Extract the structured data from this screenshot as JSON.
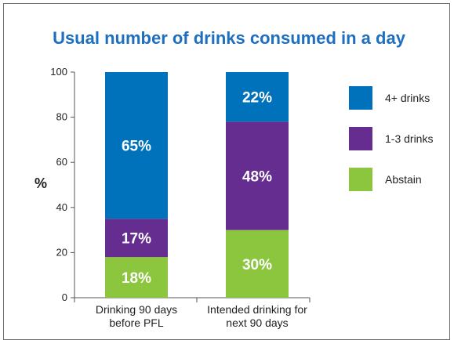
{
  "chart_data": {
    "type": "bar",
    "stacked": true,
    "title": "Usual number of drinks consumed in a day",
    "ylabel": "%",
    "ylim": [
      0,
      100
    ],
    "yticks": [
      0,
      20,
      40,
      60,
      80,
      100
    ],
    "categories": [
      [
        "Drinking 90 days",
        "before PFL"
      ],
      [
        "Intended drinking for",
        "next 90 days"
      ]
    ],
    "series": [
      {
        "name": "Abstain",
        "color": "#8cc63f",
        "values": [
          18,
          30
        ],
        "labels": [
          "18%",
          "30%"
        ]
      },
      {
        "name": "1-3 drinks",
        "color": "#662d91",
        "values": [
          17,
          48
        ],
        "labels": [
          "17%",
          "48%"
        ]
      },
      {
        "name": "4+ drinks",
        "color": "#0072bc",
        "values": [
          65,
          22
        ],
        "labels": [
          "65%",
          "22%"
        ]
      }
    ],
    "legend_order": [
      "4+ drinks",
      "1-3 drinks",
      "Abstain"
    ],
    "legend_position": "right",
    "grid": false
  }
}
